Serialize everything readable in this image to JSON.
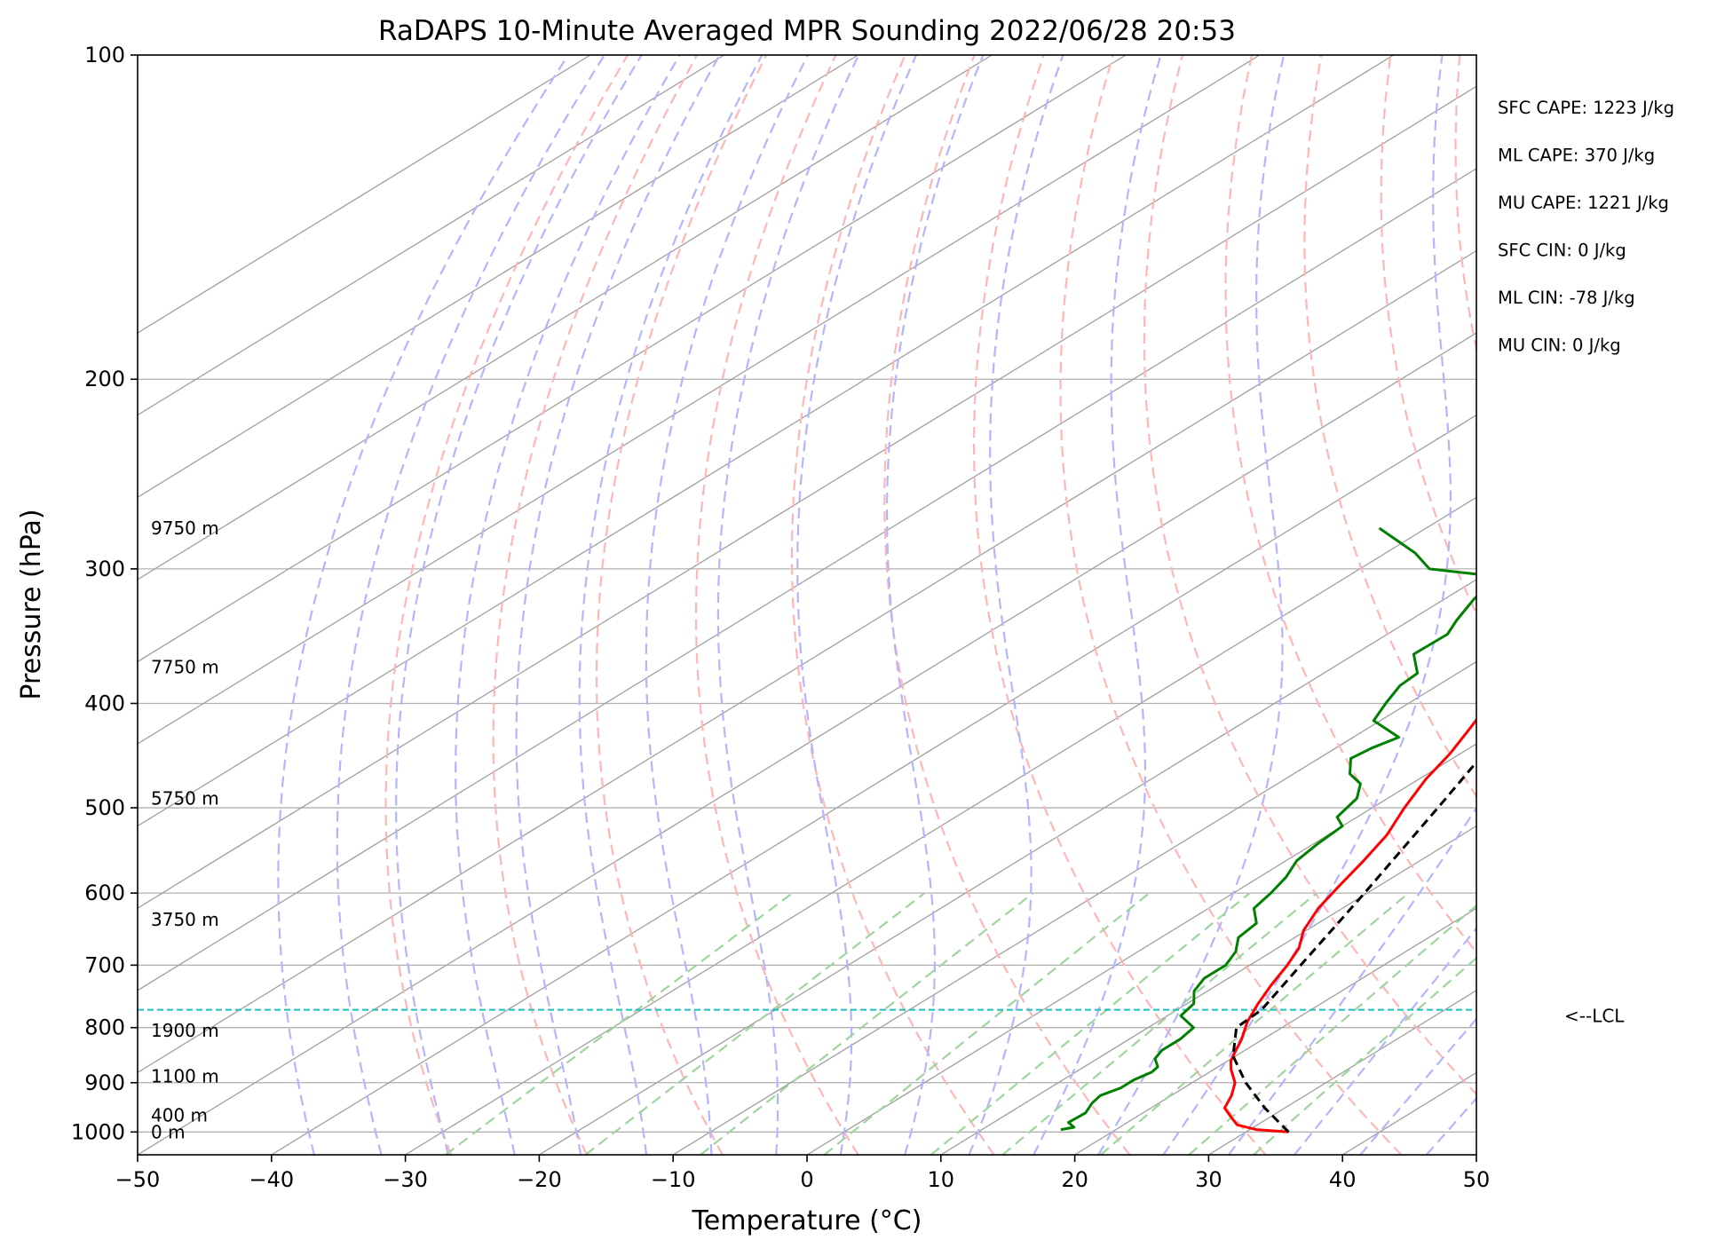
{
  "chart_data": {
    "type": "line",
    "title": "RaDAPS 10-Minute Averaged MPR Sounding 2022/06/28 20:53",
    "xlabel": "Temperature (°C)",
    "ylabel": "Pressure (hPa)",
    "xlim": [
      -50,
      50
    ],
    "ylim": [
      1050,
      100
    ],
    "y_scale": "log",
    "skew": true,
    "x_ticks": [
      "−50",
      "−40",
      "−30",
      "−20",
      "−10",
      "0",
      "10",
      "20",
      "30",
      "40",
      "50"
    ],
    "y_ticks": [
      "100",
      "200",
      "300",
      "400",
      "500",
      "600",
      "700",
      "800",
      "900",
      "1000"
    ],
    "y_tick_values": [
      100,
      200,
      300,
      400,
      500,
      600,
      700,
      800,
      900,
      1000
    ],
    "grid": true,
    "colors": {
      "temperature": "#ff0000",
      "dewpoint": "#008000",
      "parcel": "#000000",
      "lcl": "#1fbfbf",
      "dry_adiabats": "#ffb6b6",
      "moist_adiabats": "#b4b4ff",
      "mixing_ratio": "#9fd49f",
      "isotherms": "#a0a0a0"
    },
    "series": [
      {
        "key": "temperature",
        "points": [
          {
            "p": 1000,
            "t": 33.2
          },
          {
            "p": 995,
            "t": 30.5
          },
          {
            "p": 985,
            "t": 28.5
          },
          {
            "p": 970,
            "t": 27.2
          },
          {
            "p": 950,
            "t": 25.5
          },
          {
            "p": 925,
            "t": 24.5
          },
          {
            "p": 900,
            "t": 23.2
          },
          {
            "p": 875,
            "t": 21.3
          },
          {
            "p": 860,
            "t": 20.3
          },
          {
            "p": 850,
            "t": 19.8
          },
          {
            "p": 820,
            "t": 18.4
          },
          {
            "p": 790,
            "t": 16.7
          },
          {
            "p": 760,
            "t": 15.3
          },
          {
            "p": 730,
            "t": 14.0
          },
          {
            "p": 700,
            "t": 12.8
          },
          {
            "p": 675,
            "t": 11.6
          },
          {
            "p": 650,
            "t": 9.8
          },
          {
            "p": 620,
            "t": 8.2
          },
          {
            "p": 590,
            "t": 7.0
          },
          {
            "p": 560,
            "t": 5.8
          },
          {
            "p": 530,
            "t": 4.4
          },
          {
            "p": 500,
            "t": 2.4
          },
          {
            "p": 470,
            "t": 0.5
          },
          {
            "p": 445,
            "t": -0.8
          },
          {
            "p": 420,
            "t": -2.5
          },
          {
            "p": 400,
            "t": -4.0
          },
          {
            "p": 380,
            "t": -5.6
          },
          {
            "p": 350,
            "t": -8.0
          },
          {
            "p": 320,
            "t": -11.2
          },
          {
            "p": 300,
            "t": -13.6
          },
          {
            "p": 285,
            "t": -15.3
          },
          {
            "p": 275,
            "t": -16.5
          }
        ]
      },
      {
        "key": "dewpoint",
        "points": [
          {
            "p": 995,
            "t": 15.9
          },
          {
            "p": 990,
            "t": 16.6
          },
          {
            "p": 980,
            "t": 15.6
          },
          {
            "p": 960,
            "t": 15.7
          },
          {
            "p": 940,
            "t": 15.0
          },
          {
            "p": 925,
            "t": 14.7
          },
          {
            "p": 910,
            "t": 15.3
          },
          {
            "p": 895,
            "t": 15.3
          },
          {
            "p": 880,
            "t": 15.7
          },
          {
            "p": 870,
            "t": 15.5
          },
          {
            "p": 855,
            "t": 14.3
          },
          {
            "p": 840,
            "t": 13.8
          },
          {
            "p": 820,
            "t": 13.8
          },
          {
            "p": 800,
            "t": 13.4
          },
          {
            "p": 780,
            "t": 11.0
          },
          {
            "p": 760,
            "t": 10.5
          },
          {
            "p": 740,
            "t": 9.0
          },
          {
            "p": 720,
            "t": 8.2
          },
          {
            "p": 700,
            "t": 8.2
          },
          {
            "p": 680,
            "t": 7.3
          },
          {
            "p": 660,
            "t": 5.8
          },
          {
            "p": 640,
            "t": 5.4
          },
          {
            "p": 620,
            "t": 3.4
          },
          {
            "p": 600,
            "t": 2.8
          },
          {
            "p": 580,
            "t": 2.0
          },
          {
            "p": 560,
            "t": 0.8
          },
          {
            "p": 540,
            "t": 0.3
          },
          {
            "p": 520,
            "t": 0.0
          },
          {
            "p": 510,
            "t": -1.5
          },
          {
            "p": 490,
            "t": -2.3
          },
          {
            "p": 475,
            "t": -3.8
          },
          {
            "p": 465,
            "t": -5.8
          },
          {
            "p": 450,
            "t": -7.6
          },
          {
            "p": 440,
            "t": -7.3
          },
          {
            "p": 430,
            "t": -6.6
          },
          {
            "p": 415,
            "t": -10.5
          },
          {
            "p": 400,
            "t": -11.7
          },
          {
            "p": 385,
            "t": -12.8
          },
          {
            "p": 375,
            "t": -13.0
          },
          {
            "p": 360,
            "t": -15.6
          },
          {
            "p": 345,
            "t": -15.5
          },
          {
            "p": 335,
            "t": -16.5
          },
          {
            "p": 320,
            "t": -17.8
          },
          {
            "p": 305,
            "t": -18.7
          },
          {
            "p": 300,
            "t": -24.8
          },
          {
            "p": 290,
            "t": -27.8
          },
          {
            "p": 275,
            "t": -33.5
          }
        ]
      },
      {
        "key": "parcel",
        "points": [
          {
            "p": 1000,
            "t": 33.2
          },
          {
            "p": 950,
            "t": 28.5
          },
          {
            "p": 900,
            "t": 24.0
          },
          {
            "p": 850,
            "t": 19.8
          },
          {
            "p": 800,
            "t": 16.6
          },
          {
            "p": 770,
            "t": 16.3
          },
          {
            "p": 700,
            "t": 13.8
          },
          {
            "p": 600,
            "t": 9.8
          },
          {
            "p": 500,
            "t": 4.9
          },
          {
            "p": 400,
            "t": -1.2
          },
          {
            "p": 350,
            "t": -5.2
          },
          {
            "p": 300,
            "t": -10.2
          },
          {
            "p": 275,
            "t": -13.6
          }
        ]
      }
    ],
    "lcl_pressure": 770,
    "lcl_text": "<--LCL",
    "height_labels": [
      {
        "text": "9750 m",
        "p": 275
      },
      {
        "text": "7750 m",
        "p": 370
      },
      {
        "text": "5750 m",
        "p": 490
      },
      {
        "text": "3750 m",
        "p": 635
      },
      {
        "text": "1900 m",
        "p": 805
      },
      {
        "text": "1100 m",
        "p": 888
      },
      {
        "text": "400 m",
        "p": 965
      },
      {
        "text": "0 m",
        "p": 1000
      }
    ],
    "annotations": [
      "SFC CAPE: 1223 J/kg",
      "ML CAPE: 370 J/kg",
      "MU CAPE: 1221 J/kg",
      "SFC CIN: 0 J/kg",
      "ML CIN: -78 J/kg",
      "MU CIN: 0 J/kg"
    ]
  }
}
